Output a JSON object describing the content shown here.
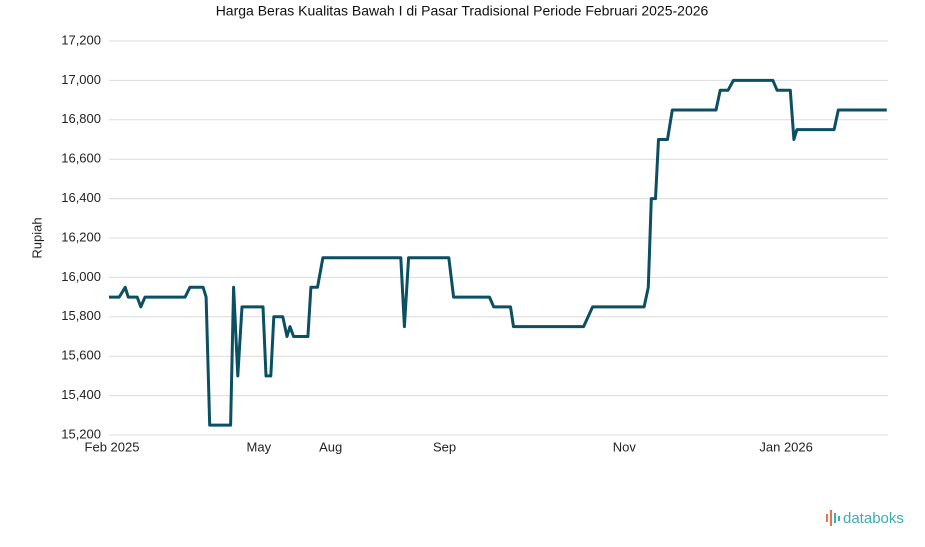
{
  "chart_data": {
    "type": "line",
    "title": "Harga Beras Kualitas Bawah I di Pasar Tradisional Periode Februari 2025-2026",
    "y_label": "Rupiah",
    "brand": "databoks",
    "color": "#0b4f63",
    "grid": true,
    "x": [
      0,
      1.7,
      2.7,
      3.2,
      4.7,
      5.3,
      6,
      12.7,
      13.5,
      15.7,
      16.2,
      16.8,
      20.3,
      20.8,
      21.5,
      22.2,
      25.7,
      26.2,
      27,
      27.5,
      29,
      29.7,
      30.2,
      30.8,
      33.2,
      33.7,
      34.8,
      35.7,
      48.7,
      49.3,
      50,
      56.7,
      57.5,
      63.5,
      64.2,
      67,
      67.5,
      79.2,
      80.7,
      89.3,
      90,
      90.5,
      91.2,
      91.7,
      93.2,
      94,
      101.3,
      102,
      103.3,
      104.2,
      110.8,
      111.5,
      113.7,
      114.3,
      114.8,
      121,
      121.7,
      129.8
    ],
    "values": [
      15900,
      15900,
      15950,
      15900,
      15900,
      15850,
      15900,
      15900,
      15950,
      15950,
      15900,
      15250,
      15250,
      15950,
      15500,
      15850,
      15850,
      15500,
      15500,
      15800,
      15800,
      15700,
      15750,
      15700,
      15700,
      15950,
      15950,
      16100,
      16100,
      15750,
      16100,
      16100,
      15900,
      15900,
      15850,
      15850,
      15750,
      15750,
      15850,
      15850,
      15950,
      16400,
      16400,
      16700,
      16700,
      16850,
      16850,
      16950,
      16950,
      17000,
      17000,
      16950,
      16950,
      16700,
      16750,
      16750,
      16850,
      16850
    ],
    "xlim": [
      0,
      130
    ],
    "xticks": [
      {
        "value": 0,
        "label": "Feb 2025"
      },
      {
        "value": 25,
        "label": "May"
      },
      {
        "value": 37,
        "label": "Aug"
      },
      {
        "value": 56,
        "label": "Sep"
      },
      {
        "value": 86,
        "label": "Nov"
      },
      {
        "value": 113,
        "label": "Jan 2026"
      }
    ],
    "ylim": [
      15200,
      17200
    ],
    "yticks": [
      {
        "value": 15200,
        "label": "15,200"
      },
      {
        "value": 15400,
        "label": "15,400"
      },
      {
        "value": 15600,
        "label": "15,600"
      },
      {
        "value": 15800,
        "label": "15,800"
      },
      {
        "value": 16000,
        "label": "16,000"
      },
      {
        "value": 16200,
        "label": "16,200"
      },
      {
        "value": 16400,
        "label": "16,400"
      },
      {
        "value": 16600,
        "label": "16,600"
      },
      {
        "value": 16800,
        "label": "16,800"
      },
      {
        "value": 17000,
        "label": "17,000"
      },
      {
        "value": 17200,
        "label": "17,200"
      }
    ]
  }
}
